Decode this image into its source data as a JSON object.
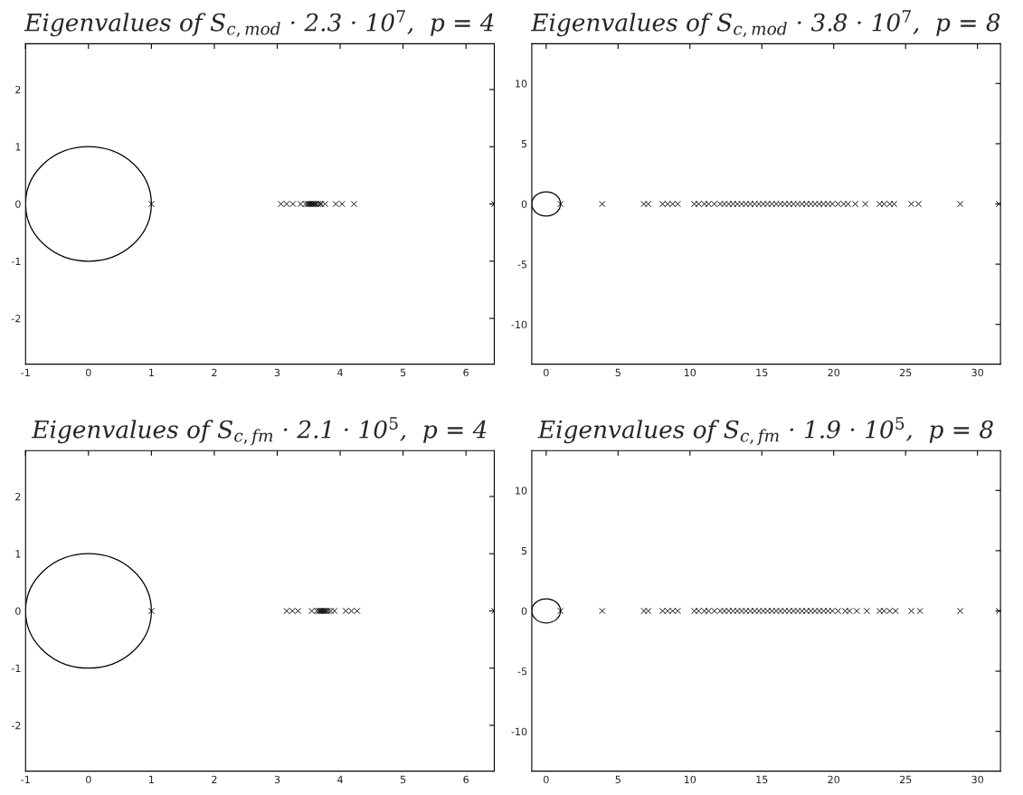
{
  "chart_data": [
    {
      "type": "scatter",
      "marker": "cross",
      "title": "Eigenvalues of S$_{c,mod}$ · 2.3 · 10$^{7}$,  p = 4",
      "xlim": [
        -1,
        6.45
      ],
      "ylim": [
        -2.8,
        2.8
      ],
      "xticks": [
        -1,
        0,
        1,
        2,
        3,
        4,
        5,
        6
      ],
      "yticks": [
        -2,
        -1,
        0,
        1,
        2
      ],
      "grid": false,
      "series": [
        {
          "color": "#000000",
          "x": [
            1.0,
            3.06,
            3.15,
            3.25,
            3.37,
            3.45,
            3.48,
            3.5,
            3.52,
            3.54,
            3.56,
            3.58,
            3.6,
            3.62,
            3.65,
            3.68,
            3.7,
            3.76,
            3.93,
            4.03,
            4.22,
            6.45
          ],
          "values": [
            0,
            0,
            0,
            0,
            0,
            0,
            0,
            0,
            0,
            0,
            0,
            0,
            0,
            0,
            0,
            0,
            0,
            0,
            0,
            0,
            0,
            0
          ]
        }
      ]
    },
    {
      "type": "scatter",
      "marker": "cross",
      "title": "Eigenvalues of S$_{c,mod}$ · 3.8 · 10$^{7}$,  p = 8",
      "xlim": [
        -1,
        31.6
      ],
      "ylim": [
        -13.3,
        13.3
      ],
      "xticks": [
        0,
        5,
        10,
        15,
        20,
        25,
        30
      ],
      "yticks": [
        -10,
        -5,
        0,
        5,
        10
      ],
      "grid": false,
      "series": [
        {
          "color": "#000000",
          "x": [
            1.0,
            3.9,
            6.8,
            7.1,
            8.1,
            8.45,
            8.8,
            9.15,
            10.3,
            10.6,
            11.0,
            11.3,
            11.7,
            12.1,
            12.4,
            12.7,
            13.0,
            13.3,
            13.6,
            13.9,
            14.2,
            14.5,
            14.8,
            15.1,
            15.4,
            15.7,
            16.0,
            16.3,
            16.6,
            16.9,
            17.2,
            17.5,
            17.8,
            18.1,
            18.4,
            18.7,
            19.0,
            19.3,
            19.6,
            19.9,
            20.3,
            20.7,
            21.0,
            21.5,
            22.2,
            23.2,
            23.5,
            23.9,
            24.2,
            25.4,
            25.9,
            28.8,
            31.5
          ],
          "values": [
            0,
            0,
            0,
            0,
            0,
            0,
            0,
            0,
            0,
            0,
            0,
            0,
            0,
            0,
            0,
            0,
            0,
            0,
            0,
            0,
            0,
            0,
            0,
            0,
            0,
            0,
            0,
            0,
            0,
            0,
            0,
            0,
            0,
            0,
            0,
            0,
            0,
            0,
            0,
            0,
            0,
            0,
            0,
            0,
            0,
            0,
            0,
            0,
            0,
            0,
            0,
            0,
            0
          ]
        }
      ]
    },
    {
      "type": "scatter",
      "marker": "cross",
      "title": "Eigenvalues of S$_{c,fm}$ · 2.1 · 10$^{5}$,  p = 4",
      "xlim": [
        -1,
        6.45
      ],
      "ylim": [
        -2.8,
        2.8
      ],
      "xticks": [
        -1,
        0,
        1,
        2,
        3,
        4,
        5,
        6
      ],
      "yticks": [
        -2,
        -1,
        0,
        1,
        2
      ],
      "grid": false,
      "series": [
        {
          "color": "#000000",
          "x": [
            1.0,
            3.15,
            3.24,
            3.33,
            3.55,
            3.63,
            3.66,
            3.68,
            3.7,
            3.72,
            3.74,
            3.76,
            3.78,
            3.81,
            3.85,
            3.91,
            4.09,
            4.18,
            4.27,
            6.45
          ],
          "values": [
            0,
            0,
            0,
            0,
            0,
            0,
            0,
            0,
            0,
            0,
            0,
            0,
            0,
            0,
            0,
            0,
            0,
            0,
            0,
            0
          ]
        }
      ]
    },
    {
      "type": "scatter",
      "marker": "cross",
      "title": "Eigenvalues of S$_{c,fm}$ · 1.9 · 10$^{5}$,  p = 8",
      "xlim": [
        -1,
        31.6
      ],
      "ylim": [
        -13.3,
        13.3
      ],
      "xticks": [
        0,
        5,
        10,
        15,
        20,
        25,
        30
      ],
      "yticks": [
        -10,
        -5,
        0,
        5,
        10
      ],
      "grid": false,
      "series": [
        {
          "color": "#000000",
          "x": [
            1.0,
            3.9,
            6.8,
            7.1,
            8.1,
            8.45,
            8.8,
            9.15,
            10.3,
            10.6,
            11.0,
            11.3,
            11.7,
            12.1,
            12.4,
            12.7,
            13.0,
            13.3,
            13.6,
            13.9,
            14.2,
            14.5,
            14.8,
            15.1,
            15.4,
            15.7,
            16.0,
            16.3,
            16.6,
            16.9,
            17.2,
            17.5,
            17.8,
            18.1,
            18.4,
            18.7,
            19.0,
            19.3,
            19.6,
            19.9,
            20.3,
            20.8,
            21.1,
            21.6,
            22.3,
            23.2,
            23.5,
            23.9,
            24.3,
            25.4,
            26.0,
            28.8,
            31.5
          ],
          "values": [
            0,
            0,
            0,
            0,
            0,
            0,
            0,
            0,
            0,
            0,
            0,
            0,
            0,
            0,
            0,
            0,
            0,
            0,
            0,
            0,
            0,
            0,
            0,
            0,
            0,
            0,
            0,
            0,
            0,
            0,
            0,
            0,
            0,
            0,
            0,
            0,
            0,
            0,
            0,
            0,
            0,
            0,
            0,
            0,
            0,
            0,
            0,
            0,
            0,
            0,
            0,
            0,
            0
          ]
        }
      ]
    }
  ]
}
